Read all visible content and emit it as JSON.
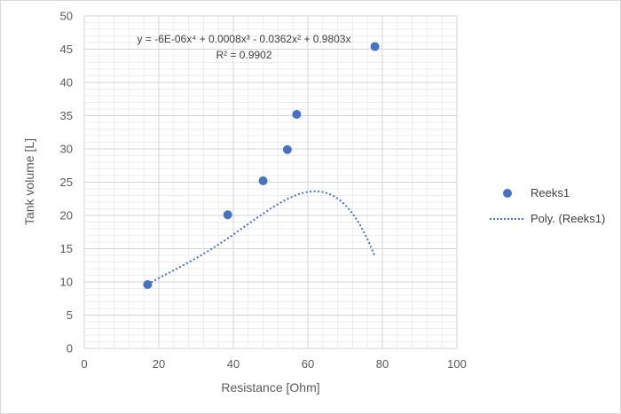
{
  "chart_data": {
    "type": "scatter",
    "title": "",
    "xlabel": "Resistance [Ohm]",
    "ylabel": "Tank volume [L]",
    "xlim": [
      0,
      100
    ],
    "ylim": [
      0,
      50
    ],
    "x_ticks": [
      0,
      20,
      40,
      60,
      80,
      100
    ],
    "y_ticks": [
      0,
      5,
      10,
      15,
      20,
      25,
      30,
      35,
      40,
      45,
      50
    ],
    "grid": true,
    "legend_position": "right",
    "series": [
      {
        "name": "Reeks1",
        "color": "#4472c4",
        "x": [
          17,
          38.5,
          48,
          54.5,
          57,
          78
        ],
        "y": [
          9.6,
          20.1,
          25.2,
          29.9,
          35.2,
          45.4
        ]
      }
    ],
    "trendline": {
      "name": "Poly. (Reeks1)",
      "type": "polynomial",
      "order": 4,
      "color": "#4472c4",
      "coefficients": [
        -6e-06,
        0.0008,
        -0.0362,
        0.9803,
        0
      ],
      "equation_label": "y = -6E-06x⁴ + 0.0008x³ - 0.0362x² + 0.9803x",
      "r2_label": "R² = 0.9902"
    }
  }
}
